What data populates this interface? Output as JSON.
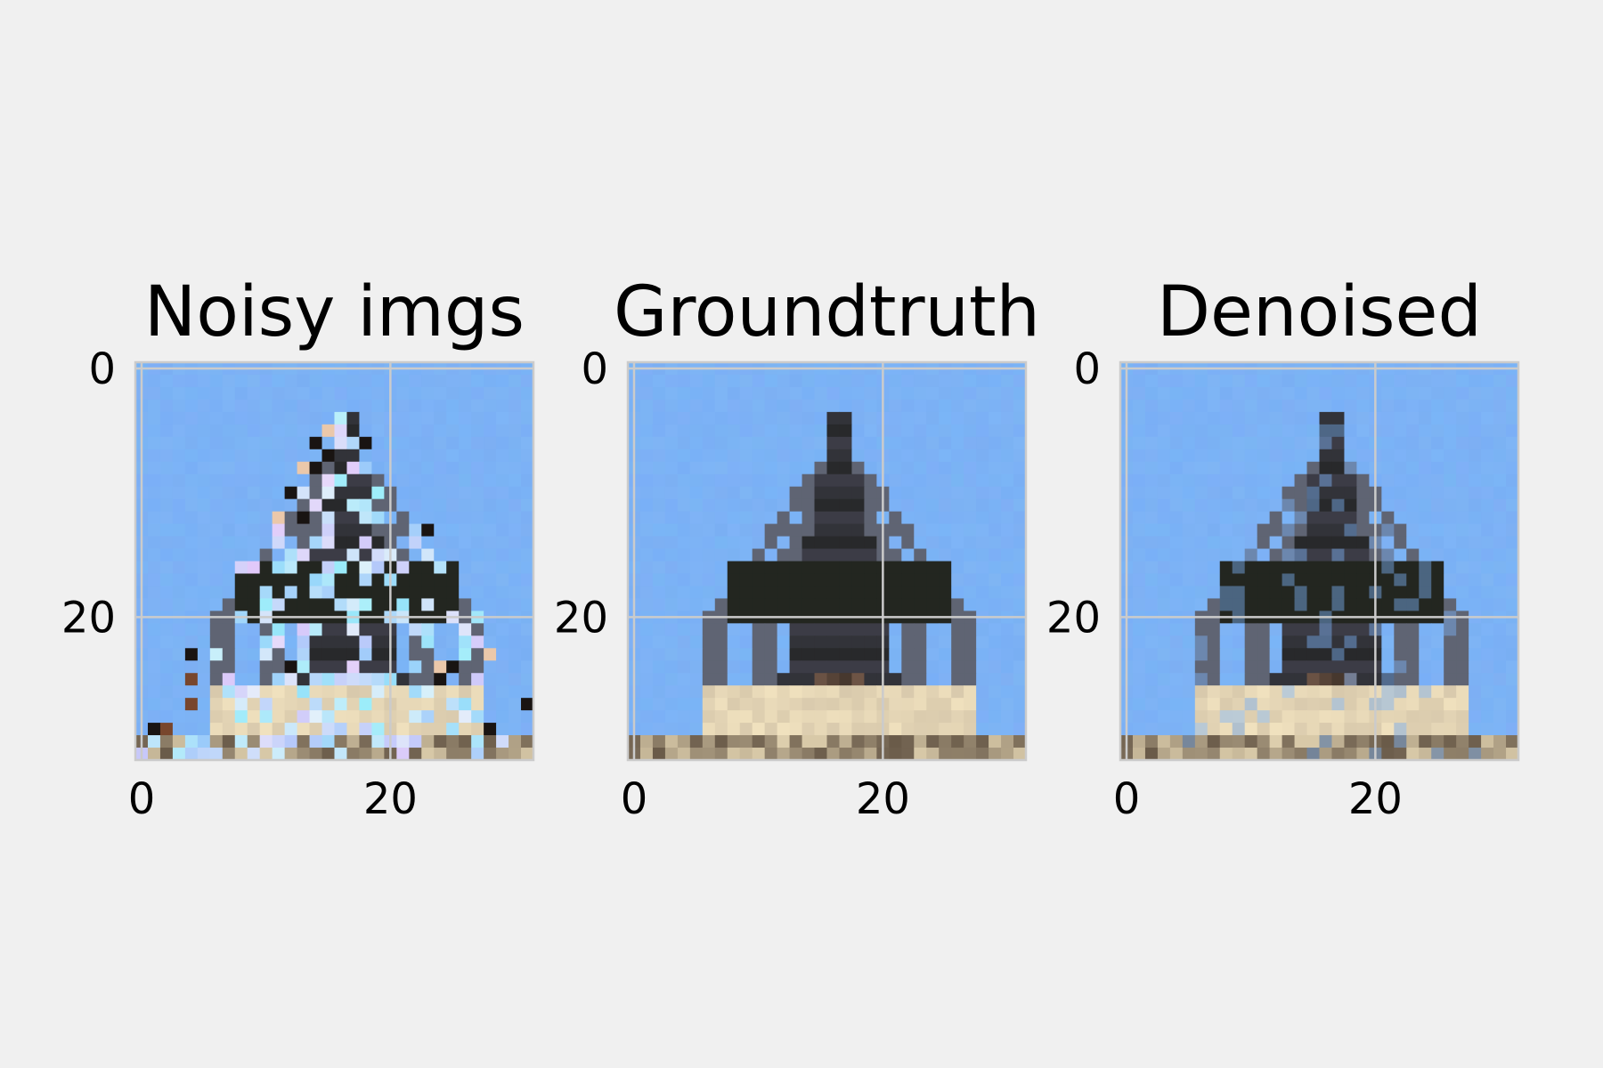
{
  "figure": {
    "background": "#f0f0f0",
    "grid_color": "#cbcbcb",
    "frame_color": "#cbcbcb"
  },
  "chart_data": [
    {
      "type": "image",
      "title": "Noisy imgs",
      "image_size": [
        32,
        32
      ],
      "xlim": [
        0,
        31
      ],
      "ylim": [
        31,
        0
      ],
      "xticks": [
        0,
        20
      ],
      "xtick_labels": [
        "0",
        "20"
      ],
      "yticks": [
        0,
        20
      ],
      "ytick_labels": [
        "0",
        "20"
      ],
      "grid": true,
      "variant": "noisy"
    },
    {
      "type": "image",
      "title": "Groundtruth",
      "image_size": [
        32,
        32
      ],
      "xlim": [
        0,
        31
      ],
      "ylim": [
        31,
        0
      ],
      "xticks": [
        0,
        20
      ],
      "xtick_labels": [
        "0",
        "20"
      ],
      "yticks": [
        0,
        20
      ],
      "ytick_labels": [
        "0",
        "20"
      ],
      "grid": true,
      "variant": "clean"
    },
    {
      "type": "image",
      "title": "Denoised",
      "image_size": [
        32,
        32
      ],
      "xlim": [
        0,
        31
      ],
      "ylim": [
        31,
        0
      ],
      "xticks": [
        0,
        20
      ],
      "xtick_labels": [
        "0",
        "20"
      ],
      "yticks": [
        0,
        20
      ],
      "ytick_labels": [
        "0",
        "20"
      ],
      "grid": true,
      "variant": "denoised"
    }
  ]
}
